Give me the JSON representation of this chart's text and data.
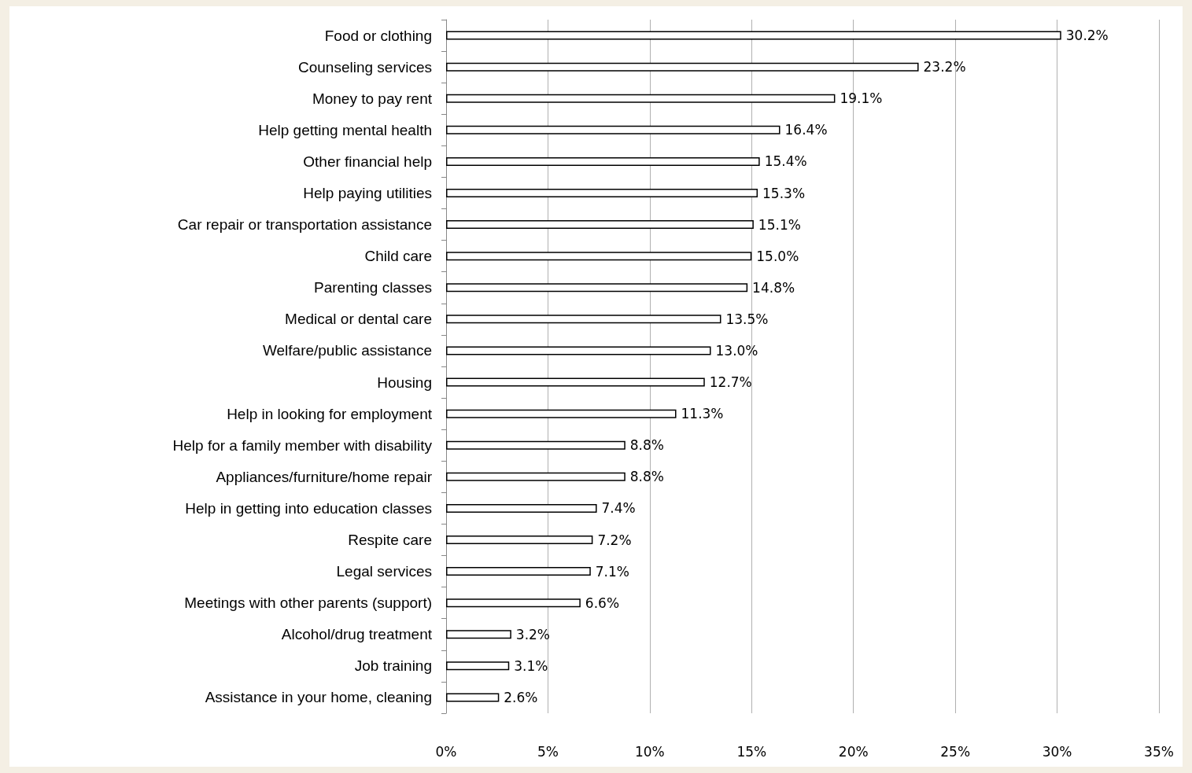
{
  "chart_data": {
    "type": "bar",
    "orientation": "horizontal",
    "categories": [
      "Food or clothing",
      "Counseling services",
      "Money to pay rent",
      "Help getting mental health",
      "Other financial help",
      "Help paying utilities",
      "Car repair or transportation assistance",
      "Child care",
      "Parenting classes",
      "Medical or dental care",
      "Welfare/public assistance",
      "Housing",
      "Help in looking for employment",
      "Help for a family member with disability",
      "Appliances/furniture/home repair",
      "Help in getting into education classes",
      "Respite care",
      "Legal services",
      "Meetings with other parents (support)",
      "Alcohol/drug treatment",
      "Job training",
      "Assistance in your home, cleaning"
    ],
    "values": [
      30.2,
      23.2,
      19.1,
      16.4,
      15.4,
      15.3,
      15.1,
      15.0,
      14.8,
      13.5,
      13.0,
      12.7,
      11.3,
      8.8,
      8.8,
      7.4,
      7.2,
      7.1,
      6.6,
      3.2,
      3.1,
      2.6
    ],
    "value_labels": [
      "30.2%",
      "23.2%",
      "19.1%",
      "16.4%",
      "15.4%",
      "15.3%",
      "15.1%",
      "15.0%",
      "14.8%",
      "13.5%",
      "13.0%",
      "12.7%",
      "11.3%",
      "8.8%",
      "8.8%",
      "7.4%",
      "7.2%",
      "7.1%",
      "6.6%",
      "3.2%",
      "3.1%",
      "2.6%"
    ],
    "color": "#ffffff",
    "xlim": [
      0,
      35
    ],
    "xticks": [
      {
        "value": 0,
        "label": "0%"
      },
      {
        "value": 5,
        "label": "5%"
      },
      {
        "value": 10,
        "label": "10%"
      },
      {
        "value": 15,
        "label": "15%"
      },
      {
        "value": 20,
        "label": "20%"
      },
      {
        "value": 25,
        "label": "25%"
      },
      {
        "value": 30,
        "label": "30%"
      },
      {
        "value": 35,
        "label": "35%"
      }
    ],
    "grid": "x"
  }
}
